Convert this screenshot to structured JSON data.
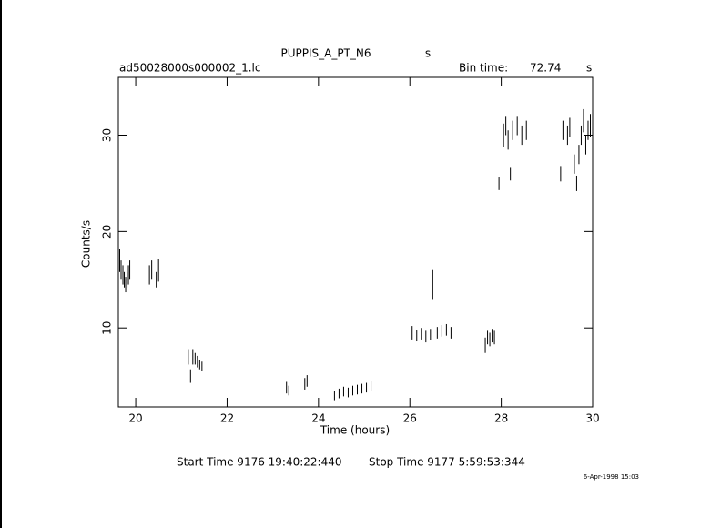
{
  "chart_data": {
    "type": "scatter",
    "title": "PUPPIS_A_PT_N6",
    "title_unit": "s",
    "subtitle": "ad50028000s000002_1.lc",
    "bin_label": "Bin time:",
    "bin_value": "72.74",
    "bin_unit": "s",
    "x_label": "Time (hours)",
    "y_label": "Counts/s",
    "start_time": "Start Time  9176 19:40:22:440",
    "stop_time": "Stop Time  9177  5:59:53:344",
    "date_stamp": "6-Apr-1998 15:03",
    "color": "#000000",
    "xlim": [
      19.62,
      30
    ],
    "ylim": [
      1.8,
      36
    ],
    "xticks": [
      20,
      22,
      24,
      26,
      28,
      30
    ],
    "yticks": [
      10,
      20,
      30
    ],
    "x": [
      19.65,
      19.68,
      19.72,
      19.75,
      19.78,
      19.81,
      19.84,
      19.87,
      20.3,
      20.35,
      20.45,
      20.5,
      21.15,
      21.2,
      21.25,
      21.3,
      21.35,
      21.4,
      21.45,
      23.3,
      23.35,
      23.7,
      23.75,
      24.35,
      24.45,
      24.55,
      24.65,
      24.75,
      24.85,
      24.95,
      25.05,
      25.15,
      26.05,
      26.15,
      26.25,
      26.35,
      26.45,
      26.5,
      26.6,
      26.7,
      26.8,
      26.9,
      27.65,
      27.7,
      27.75,
      27.8,
      27.85,
      27.95,
      28.05,
      28.1,
      28.15,
      28.2,
      28.25,
      28.35,
      28.45,
      28.55,
      29.3,
      29.35,
      29.45,
      29.5,
      29.6,
      29.65,
      29.7,
      29.75,
      29.8,
      29.85,
      29.9,
      29.95,
      30.0
    ],
    "values": [
      17,
      16,
      15.5,
      15,
      14.5,
      15,
      15.5,
      16,
      15.5,
      16,
      15,
      16,
      7,
      5,
      7,
      6.8,
      6.5,
      6.2,
      6,
      3.8,
      3.5,
      4.2,
      4.5,
      3,
      3.2,
      3.4,
      3.3,
      3.5,
      3.6,
      3.7,
      3.8,
      4,
      9.5,
      9.2,
      9.4,
      9.1,
      9.3,
      14.5,
      9.5,
      9.7,
      9.8,
      9.5,
      8.2,
      9,
      8.8,
      9.2,
      9,
      25,
      30,
      31,
      29.5,
      26,
      30.5,
      31,
      30,
      30.5,
      26,
      30.5,
      30,
      30.8,
      27,
      25,
      28,
      30,
      31.5,
      29,
      30.5,
      31,
      30
    ],
    "errors": [
      1.2,
      1,
      1,
      0.8,
      0.8,
      0.8,
      1,
      1,
      1,
      1,
      0.8,
      1.2,
      0.8,
      0.7,
      0.8,
      0.6,
      0.6,
      0.5,
      0.5,
      0.6,
      0.5,
      0.6,
      0.6,
      0.5,
      0.5,
      0.5,
      0.5,
      0.5,
      0.5,
      0.5,
      0.5,
      0.5,
      0.7,
      0.6,
      0.6,
      0.6,
      0.6,
      1.5,
      0.6,
      0.6,
      0.6,
      0.6,
      0.8,
      0.7,
      0.7,
      0.7,
      0.7,
      0.7,
      1.2,
      1,
      1,
      0.7,
      1,
      1,
      1,
      1,
      0.8,
      1,
      1,
      1,
      1,
      0.8,
      1,
      1,
      1.2,
      1,
      1,
      1.2,
      1
    ]
  }
}
